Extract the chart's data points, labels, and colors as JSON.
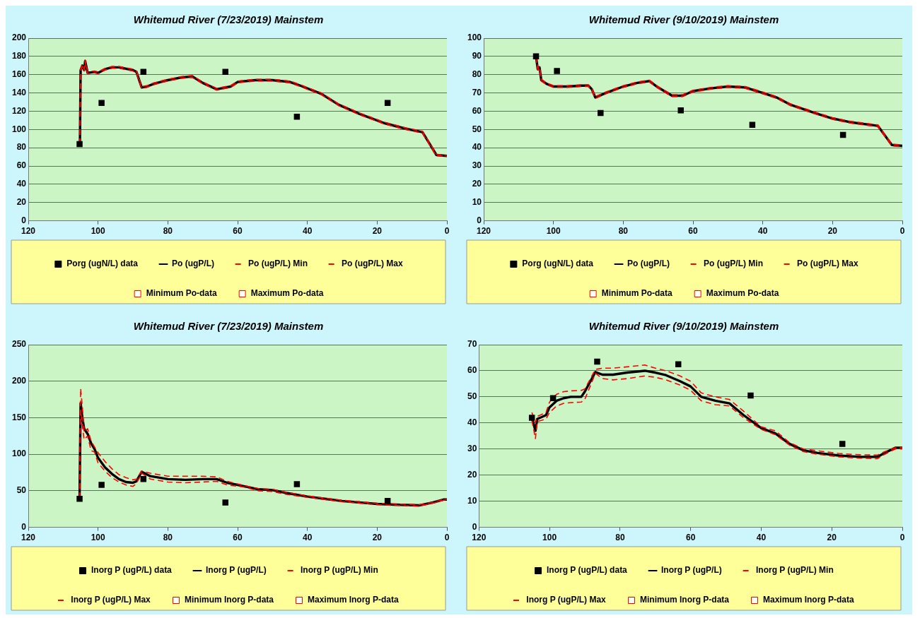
{
  "chart_data": [
    {
      "type": "line",
      "title": "Whitemud River (7/23/2019) Mainstem",
      "xlim": [
        120,
        0
      ],
      "xticks": [
        120,
        100,
        80,
        60,
        40,
        20,
        0
      ],
      "ylim": [
        0,
        200
      ],
      "yticks": [
        0,
        20,
        40,
        60,
        80,
        100,
        120,
        140,
        160,
        180,
        200
      ],
      "grid": "y",
      "legend": "bottom",
      "series": [
        {
          "name": "Porg (ugN/L) data",
          "type": "scatter",
          "marker": "square",
          "color": "#000000",
          "x": [
            105.3,
            99,
            87,
            63.5,
            43,
            17
          ],
          "values": [
            84,
            129,
            163,
            163,
            114,
            129
          ]
        },
        {
          "name": "Po (ugP/L)",
          "type": "line",
          "line_style": "solid",
          "color": "#000000",
          "x": [
            105.2,
            105,
            104.5,
            104,
            103.7,
            103,
            101,
            100,
            98,
            96,
            94,
            90,
            89,
            87.5,
            86,
            84,
            80,
            76,
            73,
            70,
            66,
            62,
            60,
            55,
            50,
            45,
            42,
            36,
            31,
            25,
            18,
            12,
            7,
            3,
            0
          ],
          "values": [
            84,
            165,
            170,
            165,
            175,
            162,
            163,
            162,
            166,
            168,
            168,
            165,
            163,
            146,
            147,
            150,
            154,
            157,
            158,
            151,
            144,
            147,
            152,
            154,
            154,
            152,
            148,
            139,
            127,
            117,
            107,
            101,
            97,
            72,
            71
          ]
        },
        {
          "name": "Po (ugP/L) Min",
          "type": "line",
          "line_style": "dashed",
          "color": "#ff0000",
          "x": [
            105.2,
            105,
            104.5,
            104,
            103.7,
            103,
            101,
            100,
            98,
            96,
            94,
            90,
            89,
            87.5,
            86,
            84,
            80,
            76,
            73,
            70,
            66,
            62,
            60,
            55,
            50,
            45,
            42,
            36,
            31,
            25,
            18,
            12,
            7,
            3,
            0
          ],
          "values": [
            84,
            164,
            169,
            164,
            174,
            161,
            162,
            161,
            165,
            167,
            167,
            164,
            162,
            145,
            146,
            149,
            153,
            156,
            157,
            150,
            143,
            146,
            151,
            153,
            153,
            151,
            147,
            138,
            126,
            116,
            106,
            100,
            96,
            71,
            71
          ]
        },
        {
          "name": "Po (ugP/L) Max",
          "type": "line",
          "line_style": "dashed",
          "color": "#ff0000",
          "x": [
            105.2,
            105,
            104.5,
            104,
            103.7,
            103,
            101,
            100,
            98,
            96,
            94,
            90,
            89,
            87.5,
            86,
            84,
            80,
            76,
            73,
            70,
            66,
            62,
            60,
            55,
            50,
            45,
            42,
            36,
            31,
            25,
            18,
            12,
            7,
            3,
            0
          ],
          "values": [
            84,
            166,
            171,
            166,
            176,
            163,
            164,
            163,
            167,
            169,
            169,
            166,
            164,
            147,
            148,
            151,
            155,
            158,
            159,
            152,
            145,
            148,
            153,
            155,
            155,
            153,
            149,
            140,
            128,
            118,
            108,
            102,
            98,
            73,
            71
          ]
        },
        {
          "name": "Minimum Po-data",
          "type": "scatter",
          "marker": "square",
          "color": "#ff0000"
        },
        {
          "name": "Maximum Po-data",
          "type": "scatter",
          "marker": "square",
          "color": "#ff0000"
        }
      ]
    },
    {
      "type": "line",
      "title": "Whitemud River (9/10/2019) Mainstem",
      "xlim": [
        120,
        0
      ],
      "xticks": [
        120,
        100,
        80,
        60,
        40,
        20,
        0
      ],
      "ylim": [
        0,
        100
      ],
      "yticks": [
        0,
        10,
        20,
        30,
        40,
        50,
        60,
        70,
        80,
        90,
        100
      ],
      "grid": "y",
      "legend": "bottom",
      "series": [
        {
          "name": "Porg (ugN/L) data",
          "type": "scatter",
          "marker": "square",
          "color": "#000000",
          "x": [
            105,
            99,
            86.5,
            63.5,
            43,
            17
          ],
          "values": [
            90,
            82,
            59,
            60.5,
            52.5,
            47
          ]
        },
        {
          "name": "Po (ugP/L)",
          "type": "line",
          "line_style": "solid",
          "color": "#000000",
          "x": [
            105,
            104.5,
            104,
            103.5,
            102,
            100,
            96,
            92,
            90,
            89,
            88,
            85,
            80,
            76,
            72.5,
            70,
            66,
            63,
            60,
            55,
            50,
            45,
            40,
            36,
            32,
            25,
            20,
            15,
            7,
            3,
            0
          ],
          "values": [
            90,
            83,
            84,
            77,
            75,
            73.5,
            73.5,
            74,
            74,
            72,
            67.5,
            70,
            73.5,
            75.5,
            76.5,
            73,
            68.5,
            68.5,
            71,
            72.5,
            73.5,
            73,
            70,
            67.5,
            63.5,
            59,
            56,
            54,
            52,
            41.5,
            41
          ]
        },
        {
          "name": "Po (ugP/L) Min",
          "type": "line",
          "line_style": "dashed",
          "color": "#ff0000",
          "x": [
            105,
            104.5,
            104,
            103.5,
            102,
            100,
            96,
            92,
            90,
            89,
            88,
            85,
            80,
            76,
            72.5,
            70,
            66,
            63,
            60,
            55,
            50,
            45,
            40,
            36,
            32,
            25,
            20,
            15,
            7,
            3,
            0
          ],
          "values": [
            89.5,
            82.5,
            83.5,
            76.5,
            74.5,
            73,
            73,
            73.5,
            73.5,
            71.5,
            67,
            69.5,
            73,
            75,
            76,
            72.5,
            68,
            68,
            70.5,
            72,
            73,
            72.5,
            69.5,
            67,
            63,
            58.5,
            55.5,
            53.5,
            51.5,
            41,
            40.5
          ]
        },
        {
          "name": "Po (ugP/L) Max",
          "type": "line",
          "line_style": "dashed",
          "color": "#ff0000",
          "x": [
            105,
            104.5,
            104,
            103.5,
            102,
            100,
            96,
            92,
            90,
            89,
            88,
            85,
            80,
            76,
            72.5,
            70,
            66,
            63,
            60,
            55,
            50,
            45,
            40,
            36,
            32,
            25,
            20,
            15,
            7,
            3,
            0
          ],
          "values": [
            90.5,
            83.5,
            84.5,
            77.5,
            75.5,
            74,
            74,
            74.5,
            74.5,
            72.5,
            68,
            70.5,
            74,
            76,
            77,
            73.5,
            69,
            69,
            71.5,
            73,
            74,
            73.5,
            70.5,
            68,
            64,
            59.5,
            56.5,
            54.5,
            52.5,
            42,
            41.5
          ]
        },
        {
          "name": "Minimum Po-data",
          "type": "scatter",
          "marker": "square",
          "color": "#ff0000"
        },
        {
          "name": "Maximum Po-data",
          "type": "scatter",
          "marker": "square",
          "color": "#ff0000"
        }
      ]
    },
    {
      "type": "line",
      "title": "Whitemud River (7/23/2019) Mainstem",
      "xlim": [
        120,
        0
      ],
      "xticks": [
        120,
        100,
        80,
        60,
        40,
        20,
        0
      ],
      "ylim": [
        0,
        250
      ],
      "yticks": [
        0,
        50,
        100,
        150,
        200,
        250
      ],
      "grid": "y",
      "legend": "bottom",
      "series": [
        {
          "name": "Inorg P (ugP/L) data",
          "type": "scatter",
          "marker": "square",
          "color": "#000000",
          "x": [
            105.3,
            99,
            87,
            63.5,
            43,
            17
          ],
          "values": [
            39,
            58,
            66,
            34,
            59,
            36
          ]
        },
        {
          "name": "Inorg P (ugP/L)",
          "type": "line",
          "line_style": "solid",
          "color": "#000000",
          "x": [
            105.3,
            105,
            104.5,
            104,
            103,
            102,
            101,
            100,
            98,
            96,
            94,
            92,
            90,
            89,
            87.5,
            85,
            80,
            75,
            70,
            66,
            63,
            58,
            54,
            50,
            46,
            40,
            35,
            30,
            20,
            15,
            8,
            4,
            1,
            0
          ],
          "values": [
            40,
            170,
            150,
            135,
            128,
            115,
            107,
            95,
            82,
            73,
            66,
            62,
            61,
            63,
            76,
            70,
            66,
            65,
            66,
            66,
            61,
            56,
            52,
            51,
            47,
            42,
            39,
            36,
            32,
            31,
            30,
            34,
            38,
            38
          ]
        },
        {
          "name": "Inorg P (ugP/L) Min",
          "type": "line",
          "line_style": "dashed",
          "color": "#ff0000",
          "x": [
            105.3,
            105,
            104.5,
            104,
            103,
            102,
            101,
            100,
            98,
            96,
            94,
            92,
            90,
            89,
            87.5,
            85,
            80,
            75,
            70,
            66,
            63,
            58,
            54,
            50,
            46,
            40,
            35,
            30,
            20,
            15,
            8,
            4,
            1,
            0
          ],
          "values": [
            40,
            160,
            140,
            120,
            125,
            105,
            103,
            88,
            77,
            68,
            62,
            58,
            56,
            60,
            74,
            66,
            62,
            61,
            62,
            63,
            58,
            55,
            50,
            49,
            45,
            41,
            38,
            35,
            31,
            30,
            29,
            33,
            37,
            38
          ]
        },
        {
          "name": "Inorg P (ugP/L) Max",
          "type": "line",
          "line_style": "dashed",
          "color": "#ff0000",
          "x": [
            105.3,
            105,
            104.5,
            104,
            103,
            102,
            101,
            100,
            98,
            96,
            94,
            92,
            90,
            89,
            87.5,
            85,
            80,
            75,
            70,
            66,
            63,
            58,
            54,
            50,
            46,
            40,
            35,
            30,
            20,
            15,
            8,
            4,
            1,
            0
          ],
          "values": [
            40,
            190,
            165,
            130,
            135,
            118,
            110,
            102,
            90,
            80,
            72,
            68,
            65,
            66,
            77,
            74,
            70,
            70,
            70,
            69,
            63,
            57,
            53,
            52,
            48,
            43,
            40,
            37,
            33,
            32,
            31,
            34,
            38,
            38
          ]
        },
        {
          "name": "Minimum Inorg P-data",
          "type": "scatter",
          "marker": "square",
          "color": "#ff0000"
        },
        {
          "name": "Maximum Inorg P-data",
          "type": "scatter",
          "marker": "square",
          "color": "#ff0000"
        }
      ]
    },
    {
      "type": "line",
      "title": "Whitemud River (9/10/2019) Mainstem",
      "xlim": [
        120,
        0
      ],
      "xticks": [
        120,
        100,
        80,
        60,
        40,
        20,
        0
      ],
      "ylim": [
        0,
        70
      ],
      "yticks": [
        0,
        10,
        20,
        30,
        40,
        50,
        60,
        70
      ],
      "grid": "y",
      "legend": "bottom",
      "series": [
        {
          "name": "Inorg P (ugP/L) data",
          "type": "scatter",
          "marker": "square",
          "color": "#000000",
          "x": [
            105,
            99,
            86.5,
            63.5,
            43,
            17
          ],
          "values": [
            42,
            49.5,
            63.5,
            62.5,
            50.5,
            32
          ]
        },
        {
          "name": "Inorg P (ugP/L)",
          "type": "line",
          "line_style": "solid",
          "color": "#000000",
          "x": [
            105,
            104,
            103.5,
            101,
            100,
            98,
            96,
            94,
            91,
            90,
            87,
            85,
            82,
            78,
            73,
            70,
            67,
            63,
            60,
            57,
            53,
            49,
            45,
            40,
            36,
            32,
            28,
            24,
            18,
            12,
            7,
            5,
            2,
            0
          ],
          "values": [
            42,
            37,
            41.5,
            43,
            46,
            48.5,
            49.5,
            50,
            50,
            52,
            59.5,
            58.5,
            58.5,
            59.3,
            60,
            59.3,
            58.3,
            56,
            54,
            50,
            48.5,
            47.5,
            43,
            38,
            36,
            32,
            29.5,
            28.5,
            27.5,
            27,
            27,
            28.5,
            30.5,
            30.5
          ]
        },
        {
          "name": "Inorg P (ugP/L) Min",
          "type": "line",
          "line_style": "dashed",
          "color": "#ff0000",
          "x": [
            105,
            104,
            103.5,
            101,
            100,
            98,
            96,
            94,
            91,
            90,
            87,
            85,
            82,
            78,
            73,
            70,
            67,
            63,
            60,
            57,
            53,
            49,
            45,
            40,
            36,
            32,
            28,
            24,
            18,
            12,
            7,
            5,
            2,
            0
          ],
          "values": [
            41,
            34,
            40.5,
            41.5,
            44,
            46.5,
            47.5,
            47.8,
            48,
            49,
            59,
            57,
            56.5,
            57,
            58,
            57.5,
            56.5,
            54.5,
            52.5,
            48.5,
            47,
            46.5,
            42,
            37.5,
            35.5,
            31.5,
            29,
            28,
            27,
            26.5,
            26.3,
            28,
            30,
            30
          ]
        },
        {
          "name": "Inorg P (ugP/L) Max",
          "type": "line",
          "line_style": "dashed",
          "color": "#ff0000",
          "x": [
            105,
            104,
            103.5,
            101,
            100,
            98,
            96,
            94,
            91,
            90,
            87,
            85,
            82,
            78,
            73,
            70,
            67,
            63,
            60,
            57,
            53,
            49,
            45,
            40,
            36,
            32,
            28,
            24,
            18,
            12,
            7,
            5,
            2,
            0
          ],
          "values": [
            44,
            40,
            42.5,
            44,
            48,
            51,
            52,
            52.3,
            52.5,
            53,
            60.5,
            61,
            61,
            61.5,
            62.2,
            61,
            60,
            58,
            56,
            51.5,
            50,
            49,
            44.5,
            38.5,
            37,
            32.5,
            30,
            29.3,
            28.3,
            27.8,
            27.7,
            29,
            30.5,
            30.5
          ]
        },
        {
          "name": "Minimum Inorg P-data",
          "type": "scatter",
          "marker": "square",
          "color": "#ff0000"
        },
        {
          "name": "Maximum Inorg P-data",
          "type": "scatter",
          "marker": "square",
          "color": "#ff0000"
        }
      ]
    }
  ]
}
